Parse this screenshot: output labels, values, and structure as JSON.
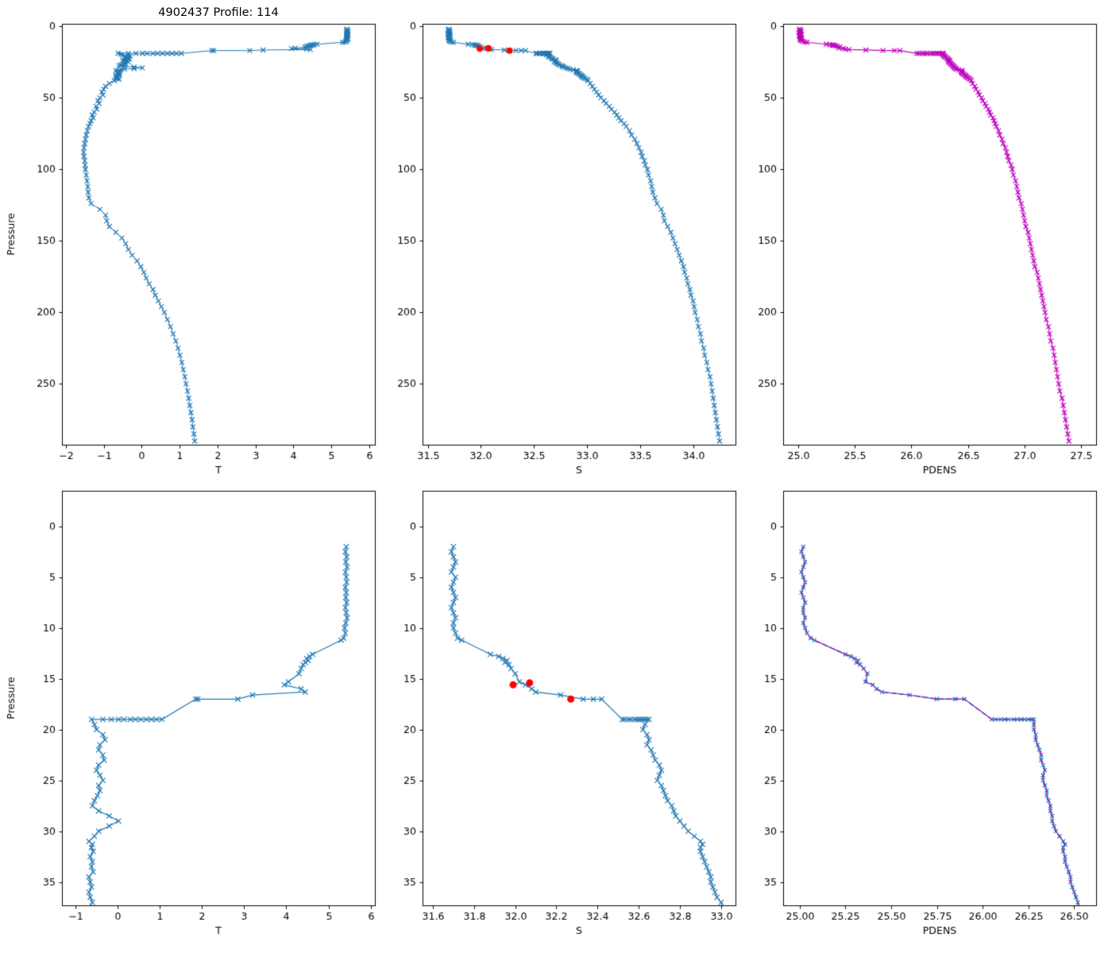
{
  "chart_data": {
    "type": "line",
    "title": "4902437 Profile: 114",
    "ylabel": "Pressure",
    "colors": {
      "profile_blue": "#1f77b4",
      "density_magenta": "#bf00bf",
      "qc_red": "#ff0000"
    },
    "profiles": {
      "pressure": [
        2,
        2.5,
        3,
        3.5,
        4,
        4.5,
        5,
        5.5,
        6,
        6.5,
        7,
        7.5,
        8,
        8.5,
        9,
        9.5,
        10,
        10.5,
        11,
        11.2,
        12.6,
        12.8,
        13,
        13.2,
        13.4,
        13.6,
        14,
        14.5,
        15.3,
        15.6,
        16,
        16.3,
        16.6,
        17,
        17,
        17,
        19,
        19,
        19,
        19,
        19,
        19,
        19,
        19,
        19,
        19,
        19,
        19,
        19.5,
        20,
        20.5,
        21,
        21.5,
        22,
        22.5,
        23,
        23.5,
        24,
        24.5,
        25,
        25.5,
        26,
        26.5,
        27,
        27.5,
        28,
        28.5,
        29,
        29.5,
        30,
        30.5,
        31,
        31.3,
        31.6,
        32,
        32.5,
        33,
        33.5,
        34,
        34.5,
        35,
        35.5,
        36,
        36.5,
        37,
        38,
        40,
        42,
        44,
        46,
        48,
        50,
        52,
        54,
        56,
        58,
        60,
        62,
        64,
        66,
        68,
        70,
        73,
        76,
        79,
        82,
        85,
        88,
        91,
        94,
        97,
        100,
        104,
        108,
        112,
        116,
        120,
        124,
        128,
        132,
        136,
        140,
        144,
        148,
        152,
        156,
        160,
        164,
        168,
        172,
        176,
        180,
        184,
        188,
        192,
        196,
        200,
        205,
        210,
        215,
        220,
        225,
        230,
        235,
        240,
        245,
        250,
        255,
        260,
        265,
        270,
        275,
        280,
        285,
        290
      ],
      "T": [
        5.42,
        5.4,
        5.43,
        5.41,
        5.44,
        5.4,
        5.42,
        5.43,
        5.4,
        5.42,
        5.41,
        5.43,
        5.4,
        5.42,
        5.44,
        5.41,
        5.38,
        5.4,
        5.36,
        5.3,
        4.62,
        4.55,
        4.48,
        4.52,
        4.45,
        4.4,
        4.35,
        4.3,
        4.05,
        3.95,
        4.35,
        4.45,
        3.2,
        2.85,
        1.9,
        1.85,
        1.05,
        0.92,
        0.8,
        0.68,
        0.55,
        0.42,
        0.3,
        0.15,
        0.02,
        -0.15,
        -0.35,
        -0.62,
        -0.55,
        -0.5,
        -0.35,
        -0.3,
        -0.42,
        -0.45,
        -0.35,
        -0.32,
        -0.45,
        -0.5,
        -0.42,
        -0.35,
        -0.45,
        -0.42,
        -0.48,
        -0.55,
        -0.6,
        -0.45,
        -0.2,
        0.02,
        -0.2,
        -0.45,
        -0.55,
        -0.68,
        -0.6,
        -0.62,
        -0.58,
        -0.65,
        -0.6,
        -0.62,
        -0.58,
        -0.68,
        -0.65,
        -0.62,
        -0.68,
        -0.65,
        -0.6,
        -0.72,
        -0.85,
        -0.95,
        -1,
        -1.05,
        -1.02,
        -1.1,
        -1.15,
        -1.12,
        -1.2,
        -1.18,
        -1.25,
        -1.3,
        -1.28,
        -1.33,
        -1.36,
        -1.4,
        -1.43,
        -1.46,
        -1.48,
        -1.5,
        -1.52,
        -1.53,
        -1.52,
        -1.5,
        -1.49,
        -1.48,
        -1.46,
        -1.44,
        -1.42,
        -1.41,
        -1.39,
        -1.33,
        -1.1,
        -0.95,
        -0.92,
        -0.85,
        -0.68,
        -0.52,
        -0.42,
        -0.35,
        -0.25,
        -0.12,
        -0.02,
        0.06,
        0.12,
        0.2,
        0.3,
        0.36,
        0.44,
        0.52,
        0.6,
        0.68,
        0.76,
        0.83,
        0.9,
        0.96,
        1.01,
        1.06,
        1.1,
        1.14,
        1.17,
        1.21,
        1.24,
        1.27,
        1.3,
        1.33,
        1.35,
        1.38,
        1.4
      ],
      "S": [
        31.7,
        31.69,
        31.7,
        31.71,
        31.7,
        31.69,
        31.71,
        31.7,
        31.69,
        31.7,
        31.71,
        31.7,
        31.69,
        31.7,
        31.71,
        31.7,
        31.7,
        31.71,
        31.72,
        31.74,
        31.88,
        31.92,
        31.94,
        31.96,
        31.95,
        31.97,
        31.98,
        32,
        32.02,
        32.05,
        32.08,
        32.1,
        32.22,
        32.33,
        32.38,
        32.42,
        32.52,
        32.53,
        32.55,
        32.56,
        32.58,
        32.59,
        32.6,
        32.61,
        32.62,
        32.63,
        32.64,
        32.65,
        32.63,
        32.62,
        32.64,
        32.65,
        32.64,
        32.66,
        32.67,
        32.68,
        32.7,
        32.71,
        32.7,
        32.69,
        32.71,
        32.72,
        32.73,
        32.74,
        32.76,
        32.77,
        32.78,
        32.8,
        32.82,
        32.84,
        32.87,
        32.9,
        32.91,
        32.9,
        32.9,
        32.91,
        32.92,
        32.93,
        32.94,
        32.95,
        32.95,
        32.96,
        32.97,
        32.98,
        33,
        33.01,
        33.03,
        33.05,
        33.07,
        33.09,
        33.11,
        33.13,
        33.16,
        33.18,
        33.21,
        33.23,
        33.26,
        33.28,
        33.3,
        33.32,
        33.35,
        33.37,
        33.4,
        33.42,
        33.45,
        33.47,
        33.49,
        33.51,
        33.52,
        33.54,
        33.55,
        33.57,
        33.58,
        33.6,
        33.61,
        33.62,
        33.64,
        33.66,
        33.7,
        33.72,
        33.73,
        33.76,
        33.79,
        33.81,
        33.83,
        33.85,
        33.87,
        33.89,
        33.91,
        33.92,
        33.94,
        33.95,
        33.97,
        33.98,
        34,
        34.01,
        34.02,
        34.04,
        34.05,
        34.07,
        34.08,
        34.1,
        34.11,
        34.13,
        34.14,
        34.16,
        34.17,
        34.18,
        34.19,
        34.2,
        34.21,
        34.22,
        34.23,
        34.24,
        34.25
      ],
      "PDENS": [
        25.02,
        25.01,
        25.02,
        25.03,
        25.02,
        25.01,
        25.02,
        25.03,
        25.02,
        25.01,
        25.02,
        25.03,
        25.02,
        25.02,
        25.03,
        25.02,
        25.03,
        25.04,
        25.06,
        25.08,
        25.25,
        25.28,
        25.3,
        25.32,
        25.31,
        25.33,
        25.35,
        25.37,
        25.36,
        25.4,
        25.42,
        25.45,
        25.6,
        25.75,
        25.85,
        25.9,
        26.05,
        26.07,
        26.1,
        26.12,
        26.14,
        26.17,
        26.19,
        26.21,
        26.23,
        26.25,
        26.27,
        26.28,
        26.28,
        26.28,
        26.29,
        26.29,
        26.3,
        26.31,
        26.32,
        26.32,
        26.33,
        26.34,
        26.33,
        26.33,
        26.34,
        26.35,
        26.35,
        26.36,
        26.37,
        26.37,
        26.38,
        26.38,
        26.39,
        26.4,
        26.42,
        26.44,
        26.45,
        26.44,
        26.44,
        26.45,
        26.45,
        26.46,
        26.47,
        26.48,
        26.48,
        26.49,
        26.5,
        26.51,
        26.52,
        26.53,
        26.54,
        26.56,
        26.57,
        26.59,
        26.6,
        26.62,
        26.63,
        26.65,
        26.66,
        26.68,
        26.69,
        26.7,
        26.72,
        26.73,
        26.74,
        26.75,
        26.77,
        26.78,
        26.8,
        26.81,
        26.83,
        26.84,
        26.85,
        26.86,
        26.88,
        26.89,
        26.9,
        26.92,
        26.93,
        26.94,
        26.95,
        26.97,
        26.98,
        26.99,
        27,
        27.01,
        27.03,
        27.04,
        27.05,
        27.06,
        27.07,
        27.08,
        27.09,
        27.11,
        27.12,
        27.13,
        27.14,
        27.15,
        27.16,
        27.17,
        27.18,
        27.19,
        27.21,
        27.22,
        27.23,
        27.25,
        27.26,
        27.27,
        27.28,
        27.29,
        27.3,
        27.31,
        27.33,
        27.34,
        27.35,
        27.36,
        27.37,
        27.38,
        27.39
      ]
    },
    "qc_points": {
      "s": [
        31.99,
        32.07,
        32.27
      ],
      "p": [
        15.6,
        15.4,
        17.0
      ]
    },
    "subplots": [
      {
        "id": "temperature-full",
        "xlabel": "T",
        "ylabel": "Pressure",
        "xlim": [
          -2.1,
          6.15
        ],
        "ylim": [
          -1.7,
          292.5
        ],
        "xticks": {
          "values": [
            -2,
            -1,
            0,
            1,
            2,
            3,
            4,
            5,
            6
          ],
          "labels": [
            "−2",
            "−1",
            "0",
            "1",
            "2",
            "3",
            "4",
            "5",
            "6"
          ]
        },
        "yticks": {
          "values": [
            0,
            50,
            100,
            150,
            200,
            250
          ],
          "labels": [
            "0",
            "50",
            "100",
            "150",
            "200",
            "250"
          ]
        },
        "series": [
          {
            "x": "profiles.T",
            "y": "profiles.pressure",
            "color": "#1f77b4",
            "line": 1,
            "marker": "x",
            "ms": 3
          }
        ]
      },
      {
        "id": "salinity-full",
        "xlabel": "S",
        "xlim": [
          31.45,
          34.4
        ],
        "ylim": [
          -1.7,
          292.5
        ],
        "xticks": {
          "values": [
            31.5,
            32,
            32.5,
            33,
            33.5,
            34
          ],
          "labels": [
            "31.5",
            "32.0",
            "32.5",
            "33.0",
            "33.5",
            "34.0"
          ]
        },
        "yticks": {
          "values": [
            0,
            50,
            100,
            150,
            200,
            250
          ],
          "labels": [
            "0",
            "50",
            "100",
            "150",
            "200",
            "250"
          ]
        },
        "series": [
          {
            "x": "profiles.S",
            "y": "profiles.pressure",
            "color": "#1f77b4",
            "line": 1,
            "marker": "x",
            "ms": 3
          },
          {
            "x": "qc_points.s",
            "y": "qc_points.p",
            "color": "#ff0000",
            "line": 0,
            "marker": "dot",
            "ms": 4
          }
        ]
      },
      {
        "id": "density-full",
        "xlabel": "PDENS",
        "xlim": [
          24.87,
          27.63
        ],
        "ylim": [
          -1.7,
          292.5
        ],
        "xticks": {
          "values": [
            25,
            25.5,
            26,
            26.5,
            27,
            27.5
          ],
          "labels": [
            "25.0",
            "25.5",
            "26.0",
            "26.5",
            "27.0",
            "27.5"
          ]
        },
        "yticks": {
          "values": [
            0,
            50,
            100,
            150,
            200,
            250
          ],
          "labels": [
            "0",
            "50",
            "100",
            "150",
            "200",
            "250"
          ]
        },
        "series": [
          {
            "x": "profiles.PDENS",
            "y": "profiles.pressure",
            "color": "#bf00bf",
            "line": 1.2,
            "marker": "x",
            "ms": 3
          }
        ]
      },
      {
        "id": "temperature-zoom",
        "xlabel": "T",
        "ylabel": "Pressure",
        "xlim": [
          -1.32,
          6.1
        ],
        "ylim": [
          -3.5,
          37.3
        ],
        "xticks": {
          "values": [
            -1,
            0,
            1,
            2,
            3,
            4,
            5,
            6
          ],
          "labels": [
            "−1",
            "0",
            "1",
            "2",
            "3",
            "4",
            "5",
            "6"
          ]
        },
        "yticks": {
          "values": [
            0,
            5,
            10,
            15,
            20,
            25,
            30,
            35
          ],
          "labels": [
            "0",
            "5",
            "10",
            "15",
            "20",
            "25",
            "30",
            "35"
          ]
        },
        "series": [
          {
            "x": "profiles.T",
            "y": "profiles.pressure",
            "color": "#1f77b4",
            "line": 1.2,
            "marker": "x",
            "ms": 3.2
          }
        ]
      },
      {
        "id": "salinity-zoom",
        "xlabel": "S",
        "xlim": [
          31.55,
          33.07
        ],
        "ylim": [
          -3.5,
          37.3
        ],
        "xticks": {
          "values": [
            31.6,
            31.8,
            32,
            32.2,
            32.4,
            32.6,
            32.8,
            33
          ],
          "labels": [
            "31.6",
            "31.8",
            "32.0",
            "32.2",
            "32.4",
            "32.6",
            "32.8",
            "33.0"
          ]
        },
        "yticks": {
          "values": [
            0,
            5,
            10,
            15,
            20,
            25,
            30,
            35
          ],
          "labels": [
            "0",
            "5",
            "10",
            "15",
            "20",
            "25",
            "30",
            "35"
          ]
        },
        "series": [
          {
            "x": "profiles.S",
            "y": "profiles.pressure",
            "color": "#1f77b4",
            "line": 1.2,
            "marker": "x",
            "ms": 3.2
          },
          {
            "x": "qc_points.s",
            "y": "qc_points.p",
            "color": "#ff0000",
            "line": 0,
            "marker": "dot",
            "ms": 4.5
          }
        ]
      },
      {
        "id": "density-zoom",
        "xlabel": "PDENS",
        "xlim": [
          24.91,
          26.62
        ],
        "ylim": [
          -3.5,
          37.3
        ],
        "xticks": {
          "values": [
            25,
            25.25,
            25.5,
            25.75,
            26,
            26.25,
            26.5
          ],
          "labels": [
            "25.00",
            "25.25",
            "25.50",
            "25.75",
            "26.00",
            "26.25",
            "26.50"
          ]
        },
        "yticks": {
          "values": [
            0,
            5,
            10,
            15,
            20,
            25,
            30,
            35
          ],
          "labels": [
            "0",
            "5",
            "10",
            "15",
            "20",
            "25",
            "30",
            "35"
          ]
        },
        "series": [
          {
            "x": "profiles.PDENS",
            "y": "profiles.pressure",
            "color": "#1f77b4",
            "line": 1.4,
            "marker": "x",
            "ms": 2.5
          },
          {
            "x": "profiles.PDENS",
            "y": "profiles.pressure",
            "color": "#bf00bf",
            "line": 1.4,
            "dash": [
              6,
              4
            ]
          }
        ]
      }
    ]
  }
}
